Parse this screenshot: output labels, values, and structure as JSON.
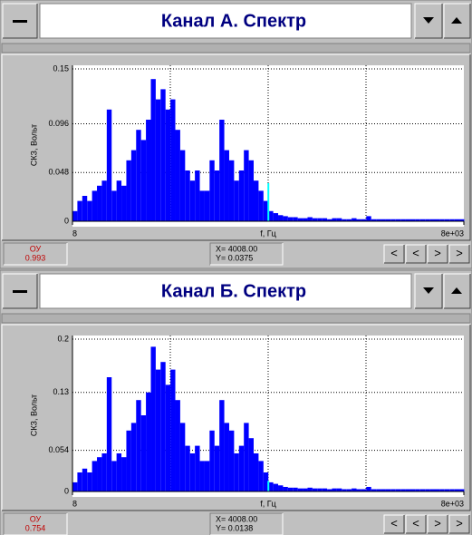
{
  "chart_data": [
    {
      "type": "bar",
      "title": "Канал А. Спектр",
      "ylabel": "СКЗ, Вольт",
      "xlabel": "f, Гц",
      "color": "#0000ff",
      "xlim": [
        8,
        8000
      ],
      "xticks": [
        8,
        {
          "value": 8000,
          "label": "8e+03"
        }
      ],
      "xgrid": [
        2006,
        4004,
        6002
      ],
      "ylim": [
        0,
        0.15
      ],
      "yticks": [
        0,
        0.048,
        0.096,
        0.15
      ],
      "grid": true,
      "bar_width": 100,
      "x": [
        8,
        108,
        208,
        308,
        408,
        508,
        608,
        708,
        808,
        908,
        1008,
        1108,
        1208,
        1308,
        1408,
        1508,
        1608,
        1708,
        1808,
        1908,
        2008,
        2108,
        2208,
        2308,
        2408,
        2508,
        2608,
        2708,
        2808,
        2908,
        3008,
        3108,
        3208,
        3308,
        3408,
        3508,
        3608,
        3708,
        3808,
        3908,
        4008,
        4108,
        4208,
        4308,
        4408,
        4508,
        4608,
        4708,
        4808,
        4908,
        5008,
        5108,
        5208,
        5308,
        5408,
        5508,
        5608,
        5708,
        5808,
        5908,
        6008,
        6108,
        6208,
        6308,
        6408,
        6508,
        6608,
        6708,
        6808,
        6908,
        7008,
        7108,
        7208,
        7308,
        7408,
        7508,
        7608,
        7708,
        7808,
        7908
      ],
      "values": [
        0.01,
        0.02,
        0.025,
        0.02,
        0.03,
        0.035,
        0.04,
        0.11,
        0.03,
        0.04,
        0.035,
        0.06,
        0.07,
        0.09,
        0.08,
        0.1,
        0.14,
        0.12,
        0.13,
        0.11,
        0.12,
        0.09,
        0.07,
        0.05,
        0.04,
        0.05,
        0.03,
        0.03,
        0.06,
        0.05,
        0.1,
        0.07,
        0.06,
        0.04,
        0.05,
        0.07,
        0.06,
        0.04,
        0.03,
        0.02,
        0.01,
        0.008,
        0.006,
        0.005,
        0.004,
        0.004,
        0.003,
        0.003,
        0.004,
        0.003,
        0.003,
        0.003,
        0.002,
        0.003,
        0.003,
        0.002,
        0.002,
        0.003,
        0.002,
        0.002,
        0.005,
        0.002,
        0.002,
        0.002,
        0.002,
        0.002,
        0.002,
        0.002,
        0.002,
        0.002,
        0.002,
        0.002,
        0.002,
        0.002,
        0.002,
        0.002,
        0.002,
        0.002,
        0.002,
        0.002
      ],
      "cursor": {
        "x": 4008,
        "y": 0.0375,
        "x_label": "X= 4008.00",
        "y_label": "Y= 0.0375"
      },
      "ou": {
        "label": "ОУ",
        "value": 0.993
      },
      "nav_buttons": [
        "<",
        "<",
        ">",
        ">"
      ]
    },
    {
      "type": "bar",
      "title": "Канал Б. Спектр",
      "ylabel": "СКЗ, Вольт",
      "xlabel": "f, Гц",
      "color": "#0000ff",
      "xlim": [
        8,
        8000
      ],
      "xticks": [
        8,
        {
          "value": 8000,
          "label": "8e+03"
        }
      ],
      "xgrid": [
        2006,
        4004,
        6002
      ],
      "ylim": [
        0,
        0.2
      ],
      "yticks": [
        0,
        0.054,
        0.13,
        0.2
      ],
      "grid": true,
      "bar_width": 100,
      "x": [
        8,
        108,
        208,
        308,
        408,
        508,
        608,
        708,
        808,
        908,
        1008,
        1108,
        1208,
        1308,
        1408,
        1508,
        1608,
        1708,
        1808,
        1908,
        2008,
        2108,
        2208,
        2308,
        2408,
        2508,
        2608,
        2708,
        2808,
        2908,
        3008,
        3108,
        3208,
        3308,
        3408,
        3508,
        3608,
        3708,
        3808,
        3908,
        4008,
        4108,
        4208,
        4308,
        4408,
        4508,
        4608,
        4708,
        4808,
        4908,
        5008,
        5108,
        5208,
        5308,
        5408,
        5508,
        5608,
        5708,
        5808,
        5908,
        6008,
        6108,
        6208,
        6308,
        6408,
        6508,
        6608,
        6708,
        6808,
        6908,
        7008,
        7108,
        7208,
        7308,
        7408,
        7508,
        7608,
        7708,
        7808,
        7908
      ],
      "values": [
        0.012,
        0.025,
        0.03,
        0.025,
        0.04,
        0.045,
        0.05,
        0.15,
        0.04,
        0.05,
        0.045,
        0.08,
        0.09,
        0.12,
        0.1,
        0.13,
        0.19,
        0.16,
        0.17,
        0.14,
        0.16,
        0.12,
        0.09,
        0.06,
        0.05,
        0.06,
        0.04,
        0.04,
        0.08,
        0.06,
        0.12,
        0.09,
        0.08,
        0.05,
        0.06,
        0.09,
        0.07,
        0.05,
        0.04,
        0.025,
        0.012,
        0.01,
        0.008,
        0.006,
        0.005,
        0.005,
        0.004,
        0.004,
        0.005,
        0.004,
        0.004,
        0.004,
        0.003,
        0.004,
        0.004,
        0.003,
        0.003,
        0.004,
        0.003,
        0.003,
        0.006,
        0.003,
        0.003,
        0.003,
        0.003,
        0.003,
        0.003,
        0.003,
        0.003,
        0.003,
        0.003,
        0.003,
        0.003,
        0.003,
        0.003,
        0.003,
        0.003,
        0.003,
        0.003,
        0.003
      ],
      "cursor": {
        "x": 4008,
        "y": 0.0138,
        "x_label": "X= 4008.00",
        "y_label": "Y= 0.0138"
      },
      "ou": {
        "label": "ОУ",
        "value": 0.754
      },
      "nav_buttons": [
        "<",
        "<",
        ">",
        ">"
      ]
    }
  ]
}
